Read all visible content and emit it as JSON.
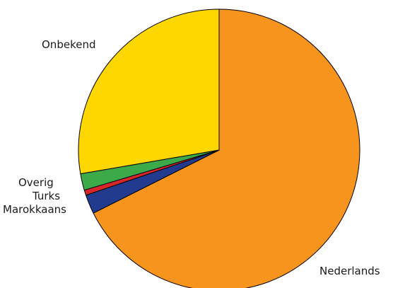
{
  "chart_data": {
    "type": "pie",
    "title": "",
    "slices": [
      {
        "label": "Nederlands",
        "value": 67.6,
        "color": "#F7941D"
      },
      {
        "label": "Marokkaans",
        "value": 2.2,
        "color": "#233B8F"
      },
      {
        "label": "Turks",
        "value": 0.6,
        "color": "#D7262A"
      },
      {
        "label": "Overig",
        "value": 1.9,
        "color": "#3DAA4A"
      },
      {
        "label": "Onbekend",
        "value": 27.7,
        "color": "#FFD700"
      }
    ],
    "start_direction": "top",
    "rotation": "clockwise",
    "legend": "none; labels placed next to slices"
  }
}
